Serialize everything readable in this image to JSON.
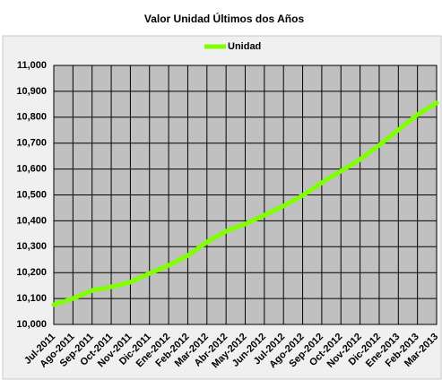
{
  "chart_data": {
    "type": "line",
    "title": "Valor Unidad Últimos dos Años",
    "categories": [
      "Jul-2011",
      "Ago-2011",
      "Sep-2011",
      "Oct-2011",
      "Nov-2011",
      "Dic-2011",
      "Ene-2012",
      "Feb-2012",
      "Mar-2012",
      "Abr-2012",
      "May-2012",
      "Jun-2012",
      "Jul-2012",
      "Ago-2012",
      "Sep-2012",
      "Oct-2012",
      "Nov-2012",
      "Dic-2012",
      "Ene-2013",
      "Feb-2013",
      "Mar-2013"
    ],
    "series": [
      {
        "name": "Unidad",
        "color": "#80ff00",
        "values": [
          10076,
          10100,
          10131,
          10145,
          10163,
          10197,
          10228,
          10266,
          10318,
          10360,
          10388,
          10422,
          10457,
          10498,
          10547,
          10592,
          10637,
          10692,
          10751,
          10810,
          10855
        ]
      }
    ],
    "ylim": [
      10000,
      11000
    ],
    "yticks": [
      {
        "value": 10000,
        "label": "10,000"
      },
      {
        "value": 10100,
        "label": "10,100"
      },
      {
        "value": 10200,
        "label": "10,200"
      },
      {
        "value": 10300,
        "label": "10,300"
      },
      {
        "value": 10400,
        "label": "10,400"
      },
      {
        "value": 10500,
        "label": "10,500"
      },
      {
        "value": 10600,
        "label": "10,600"
      },
      {
        "value": 10700,
        "label": "10,700"
      },
      {
        "value": 10800,
        "label": "10,800"
      },
      {
        "value": 10900,
        "label": "10,900"
      },
      {
        "value": 11000,
        "label": "11,000"
      }
    ],
    "grid": true,
    "legend": "top"
  }
}
